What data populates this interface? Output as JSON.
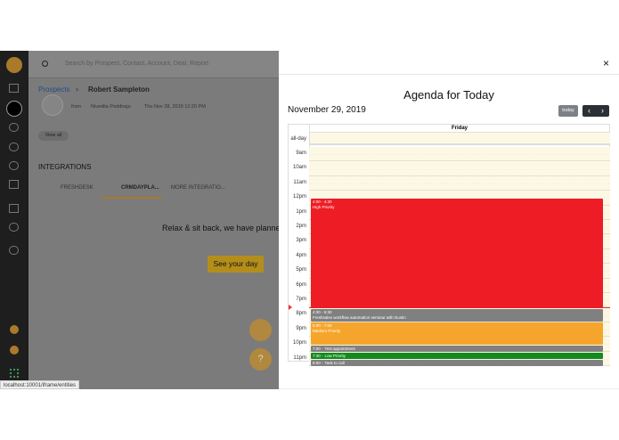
{
  "app": {
    "search_placeholder": "Search by Prospect, Contact, Account, Deal, Report",
    "breadcrumb": {
      "parent": "Prospects",
      "current": "Robert Sampleton"
    },
    "activity": {
      "from": "from",
      "author": "Nivedita Peddiraju",
      "date": "Thu Nov 28, 2019 12:20 PM",
      "view_all": "View all"
    },
    "integrations": {
      "heading": "INTEGRATIONS",
      "tabs": [
        "FRESHDESK",
        "CRMDAYPLA...",
        "MORE INTEGRATIO..."
      ],
      "message": "Relax & sit back, we have planned",
      "button": "See your day"
    },
    "status_url": "localhost:10001/iframe/entities"
  },
  "agenda": {
    "close": "×",
    "title": "Agenda for Today",
    "date": "November 29, 2019",
    "today": "today",
    "prev": "‹",
    "next": "›",
    "day": "Friday",
    "all_day": "all-day",
    "hours": [
      "9am",
      "10am",
      "11am",
      "12pm",
      "1pm",
      "2pm",
      "3pm",
      "4pm",
      "5pm",
      "6pm",
      "7pm",
      "8pm",
      "9pm",
      "10pm",
      "11pm"
    ],
    "events": [
      {
        "time": "4:00 - 4:30",
        "title": "High Priority"
      },
      {
        "time": "4:30 - 5:30",
        "title": "Freshsales workflow automation seminar with Dustin"
      },
      {
        "time": "5:30 - 7:00",
        "title": "Medium Priority"
      },
      {
        "time": "7:00 -",
        "title": "Test appointment"
      },
      {
        "time": "7:30 -",
        "title": "Low Priority"
      },
      {
        "time": "8:00 -",
        "title": "Task to call"
      }
    ]
  }
}
